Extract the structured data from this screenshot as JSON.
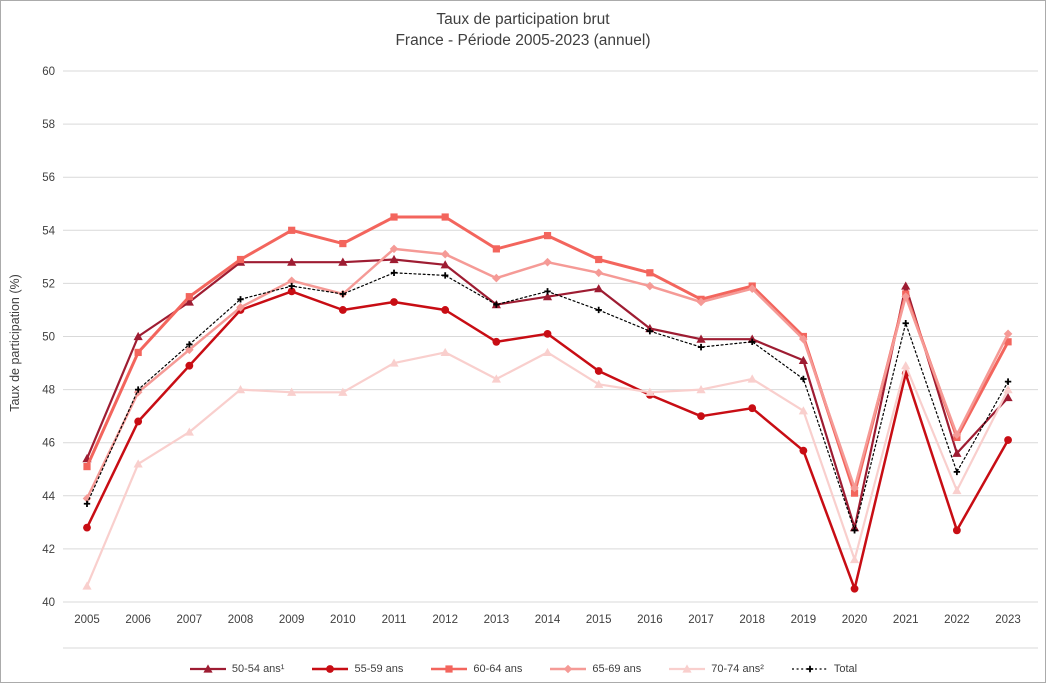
{
  "title_line1": "Taux de participation brut",
  "title_line2": "France - Période 2005-2023 (annuel)",
  "ylabel": "Taux de participation (%)",
  "colors": {
    "grid": "#d9d9d9",
    "axis_text": "#3f3f3f",
    "separator": "#d9d9d9",
    "frame_border": "#ababab"
  },
  "chart_data": {
    "type": "line",
    "title": "Taux de participation brut — France - Période 2005-2023 (annuel)",
    "xlabel": "",
    "ylabel": "Taux de participation (%)",
    "x": [
      2005,
      2006,
      2007,
      2008,
      2009,
      2010,
      2011,
      2012,
      2013,
      2014,
      2015,
      2016,
      2017,
      2018,
      2019,
      2020,
      2021,
      2022,
      2023
    ],
    "ylim": [
      40,
      60
    ],
    "ytick_step": 2,
    "grid": true,
    "legend_position": "bottom",
    "series": [
      {
        "name": "50-54 ans¹",
        "color": "#9e1c32",
        "marker": "triangle",
        "dash": null,
        "line_width": 2.2,
        "values": [
          45.4,
          50.0,
          51.3,
          52.8,
          52.8,
          52.8,
          52.9,
          52.7,
          51.2,
          51.5,
          51.8,
          50.3,
          49.9,
          49.9,
          49.1,
          42.8,
          51.9,
          45.6,
          47.7
        ]
      },
      {
        "name": "55-59 ans",
        "color": "#c80d14",
        "marker": "circle",
        "dash": null,
        "line_width": 2.5,
        "values": [
          42.8,
          46.8,
          48.9,
          51.0,
          51.7,
          51.0,
          51.3,
          51.0,
          49.8,
          50.1,
          48.7,
          47.8,
          47.0,
          47.3,
          45.7,
          40.5,
          48.6,
          42.7,
          46.1
        ]
      },
      {
        "name": "60-64 ans",
        "color": "#f3655d",
        "marker": "square",
        "dash": null,
        "line_width": 3,
        "values": [
          45.1,
          49.4,
          51.5,
          52.9,
          54.0,
          53.5,
          54.5,
          54.5,
          53.3,
          53.8,
          52.9,
          52.4,
          51.4,
          51.9,
          50.0,
          44.1,
          51.6,
          46.2,
          49.8
        ]
      },
      {
        "name": "65-69 ans",
        "color": "#f59a96",
        "marker": "diamond",
        "dash": null,
        "line_width": 2.5,
        "values": [
          43.9,
          47.9,
          49.5,
          51.1,
          52.1,
          51.6,
          53.3,
          53.1,
          52.2,
          52.8,
          52.4,
          51.9,
          51.3,
          51.8,
          49.9,
          44.3,
          51.5,
          46.3,
          50.1
        ]
      },
      {
        "name": "70-74 ans²",
        "color": "#f9cfcd",
        "marker": "triangle",
        "dash": null,
        "line_width": 2.2,
        "values": [
          40.6,
          45.2,
          46.4,
          48.0,
          47.9,
          47.9,
          49.0,
          49.4,
          48.4,
          49.4,
          48.2,
          47.9,
          48.0,
          48.4,
          47.2,
          41.6,
          48.9,
          44.2,
          48.0
        ]
      },
      {
        "name": "Total",
        "color": "#000000",
        "marker": "plus",
        "dash": "dotted",
        "line_width": 1.2,
        "values": [
          43.7,
          48.0,
          49.7,
          51.4,
          51.9,
          51.6,
          52.4,
          52.3,
          51.2,
          51.7,
          51.0,
          50.2,
          49.6,
          49.8,
          48.4,
          42.7,
          50.5,
          44.9,
          48.3
        ]
      }
    ]
  }
}
